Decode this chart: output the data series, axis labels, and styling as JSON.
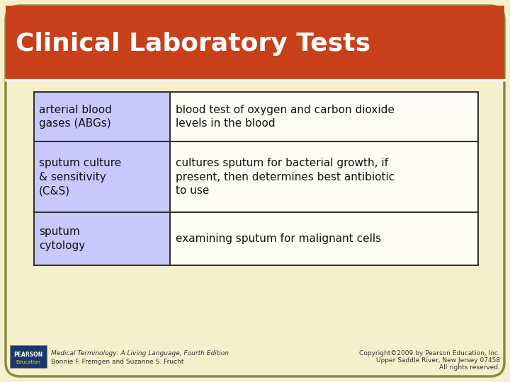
{
  "title": "Clinical Laboratory Tests",
  "title_color": "#FFFFFF",
  "title_bg_color": "#C8401A",
  "slide_bg_color": "#F5F0CC",
  "border_color": "#8B8840",
  "table_border_color": "#333333",
  "left_col_bg": "#C8C8FF",
  "right_col_bg": "#FDFDF5",
  "rows": [
    {
      "left": "arterial blood\ngases (ABGs)",
      "right": "blood test of oxygen and carbon dioxide\nlevels in the blood"
    },
    {
      "left": "sputum culture\n& sensitivity\n(C&S)",
      "right": "cultures sputum for bacterial growth, if\npresent, then determines best antibiotic\nto use"
    },
    {
      "left": "sputum\ncytology",
      "right": "examining sputum for malignant cells"
    }
  ],
  "footer_left_line1": "Medical Terminology: A Living Language, Fourth Edition",
  "footer_left_line2": "Bonnie F. Fremgen and Suzanne S. Frucht",
  "footer_right_line1": "Copyright©2009 by Pearson Education, Inc.",
  "footer_right_line2": "Upper Saddle River, New Jersey 07458",
  "footer_right_line3": "All rights reserved.",
  "pearson_box_color": "#1A3A6B",
  "pearson_edu_color": "#FFD700"
}
